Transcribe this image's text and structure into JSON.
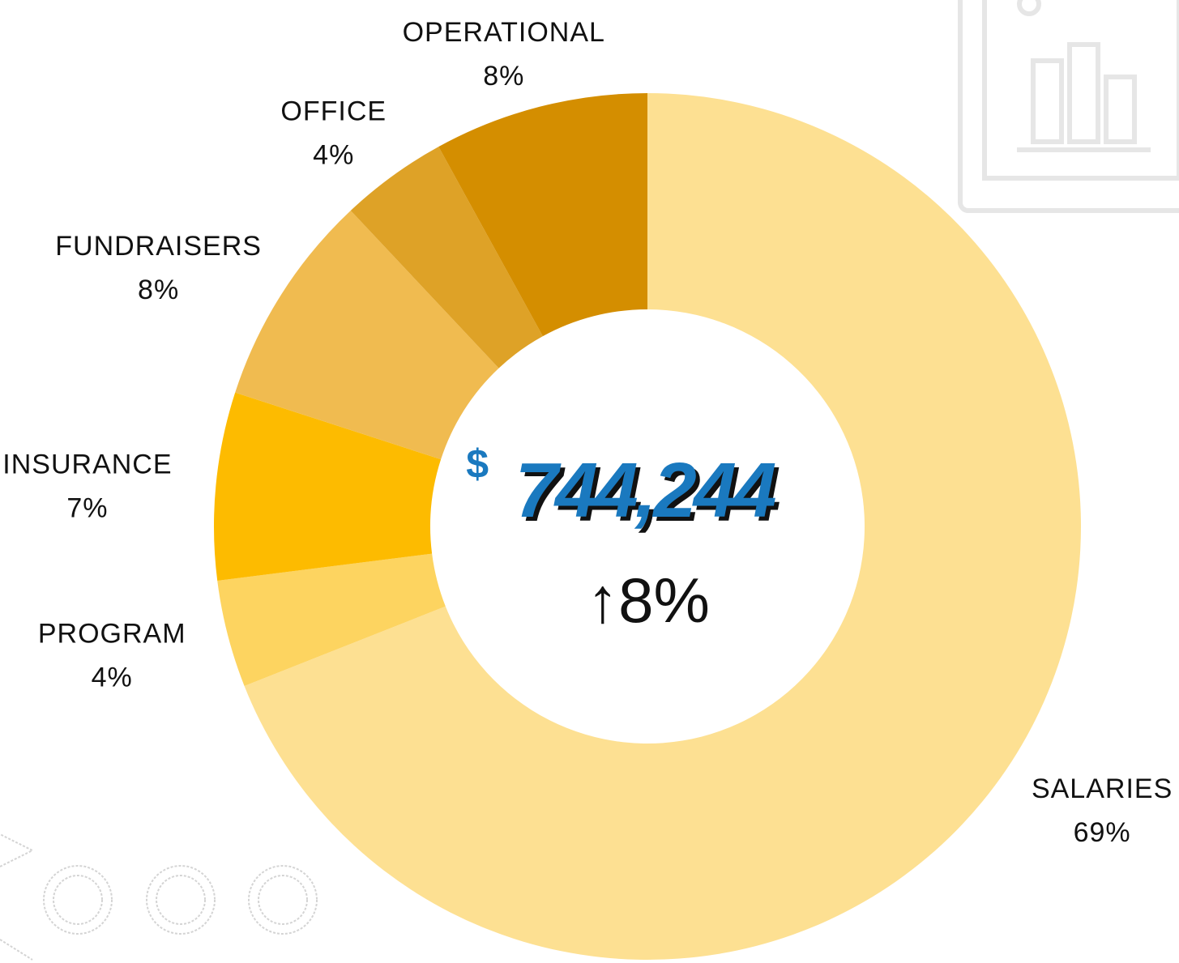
{
  "chart_data": {
    "type": "donut",
    "categories": [
      "SALARIES",
      "PROGRAM",
      "INSURANCE",
      "FUNDRAISERS",
      "OFFICE",
      "OPERATIONAL"
    ],
    "values": [
      69,
      4,
      7,
      8,
      4,
      8
    ],
    "value_labels": [
      "69%",
      "4%",
      "7%",
      "8%",
      "4%",
      "8%"
    ],
    "colors": [
      "#fde092",
      "#fdd460",
      "#fdbb00",
      "#f0bb50",
      "#dea227",
      "#d48e00"
    ],
    "center_label": {
      "prefix": "$",
      "value": "744,244",
      "change": "↑8%"
    }
  }
}
